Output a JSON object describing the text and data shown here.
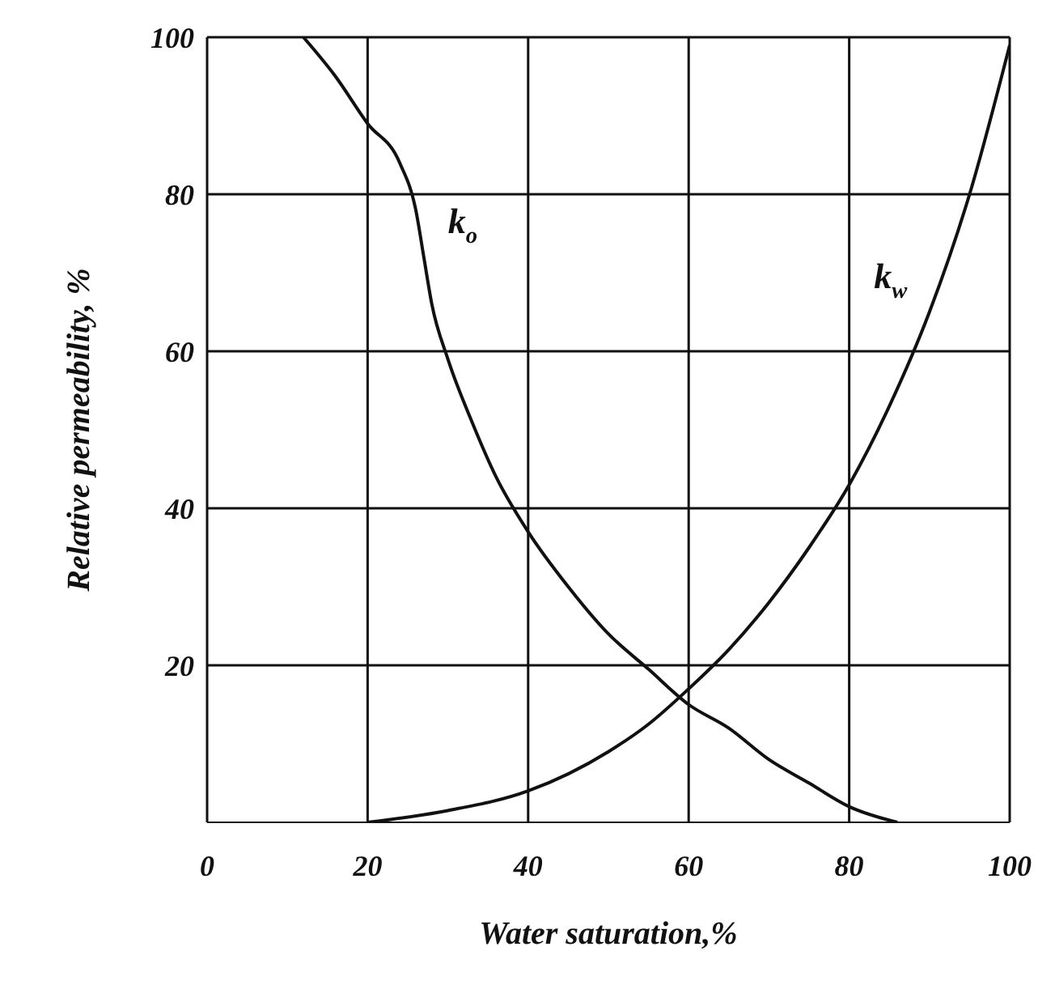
{
  "chart_data": {
    "type": "line",
    "xlabel": "Water saturation,%",
    "ylabel": "Relative permeability, %",
    "xlim": [
      0,
      100
    ],
    "ylim": [
      0,
      100
    ],
    "xticks": [
      0,
      20,
      40,
      60,
      80,
      100
    ],
    "yticks": [
      20,
      40,
      60,
      80,
      100
    ],
    "grid": true,
    "legend": false,
    "marker": "none",
    "line_style": "solid",
    "series": [
      {
        "color": "#111111",
        "x": [
          12,
          16,
          20,
          24,
          26,
          27,
          28,
          30,
          33,
          36,
          40,
          45,
          50,
          55,
          60,
          65,
          70,
          75,
          80,
          86
        ],
        "values": [
          100,
          95,
          89,
          84,
          78,
          72,
          66,
          59,
          51,
          44,
          37,
          30,
          24,
          19.5,
          15,
          12,
          8,
          5,
          2,
          0
        ]
      },
      {
        "color": "#111111",
        "x": [
          20,
          30,
          40,
          50,
          55,
          60,
          65,
          70,
          75,
          80,
          85,
          90,
          95,
          100
        ],
        "values": [
          0,
          1.5,
          4,
          9,
          12.5,
          17,
          22,
          28,
          35,
          43,
          53,
          65,
          80,
          99
        ]
      }
    ],
    "annotations": [
      "k$_{o}$",
      "k$_{w}$"
    ]
  }
}
